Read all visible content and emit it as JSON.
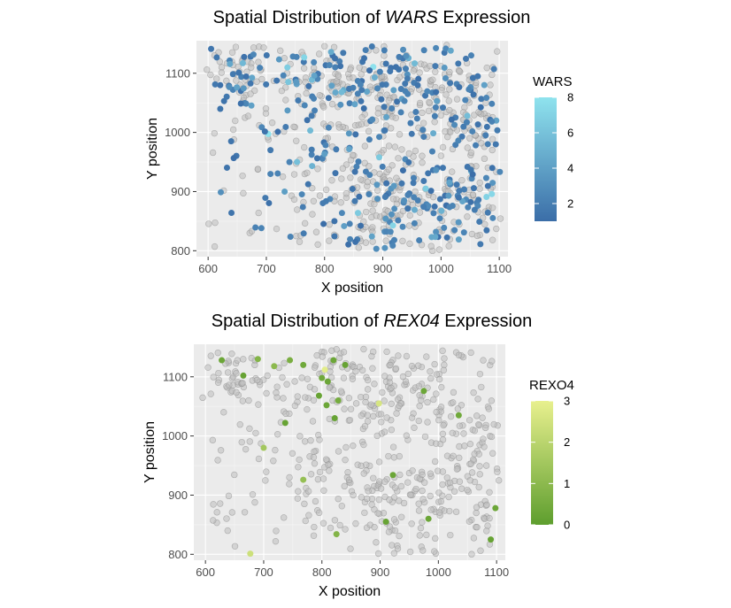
{
  "chart_data": [
    {
      "type": "scatter",
      "title_prefix": "Spatial Distribution of ",
      "title_gene": "WARS",
      "title_suffix": " Expression",
      "xlabel": "X position",
      "ylabel": "Y position",
      "xlim": [
        580,
        1115
      ],
      "ylim": [
        790,
        1155
      ],
      "xticks": [
        600,
        700,
        800,
        900,
        1000,
        1100
      ],
      "yticks": [
        800,
        900,
        1000,
        1100
      ],
      "legend": {
        "title": "WARS",
        "min": 1,
        "max": 8,
        "ticks": [
          2,
          4,
          6,
          8
        ],
        "color_low": "#3b6ea8",
        "color_high": "#8fe3ee",
        "placement": "right"
      },
      "background_color": "#bdbdbd",
      "panel_color": "#ebebeb",
      "grid": true
    },
    {
      "type": "scatter",
      "title_prefix": "Spatial Distribution of ",
      "title_gene": "REX04",
      "title_suffix": " Expression",
      "xlabel": "X position",
      "ylabel": "Y position",
      "xlim": [
        580,
        1115
      ],
      "ylim": [
        790,
        1155
      ],
      "xticks": [
        600,
        700,
        800,
        900,
        1000,
        1100
      ],
      "yticks": [
        800,
        900,
        1000,
        1100
      ],
      "legend": {
        "title": "REXO4",
        "min": 0,
        "max": 3,
        "ticks": [
          0,
          1,
          2,
          3
        ],
        "color_low": "#5e9e2e",
        "color_high": "#e8f08e",
        "placement": "right"
      },
      "background_color": "#bdbdbd",
      "panel_color": "#ebebeb",
      "grid": true,
      "points": [
        {
          "x": 628,
          "y": 1128,
          "v": 0.3
        },
        {
          "x": 665,
          "y": 1102,
          "v": 0.2
        },
        {
          "x": 690,
          "y": 1130,
          "v": 0.8
        },
        {
          "x": 718,
          "y": 1118,
          "v": 1.0
        },
        {
          "x": 745,
          "y": 1128,
          "v": 0.6
        },
        {
          "x": 768,
          "y": 1120,
          "v": 0.4
        },
        {
          "x": 805,
          "y": 1112,
          "v": 2.9
        },
        {
          "x": 800,
          "y": 1098,
          "v": 0.4
        },
        {
          "x": 820,
          "y": 1128,
          "v": 0.3
        },
        {
          "x": 840,
          "y": 1120,
          "v": 0.2
        },
        {
          "x": 810,
          "y": 1092,
          "v": 0.3
        },
        {
          "x": 795,
          "y": 1068,
          "v": 0.2
        },
        {
          "x": 808,
          "y": 1052,
          "v": 0.3
        },
        {
          "x": 828,
          "y": 1060,
          "v": 0.5
        },
        {
          "x": 822,
          "y": 1030,
          "v": 0.2
        },
        {
          "x": 898,
          "y": 1055,
          "v": 2.6
        },
        {
          "x": 975,
          "y": 1076,
          "v": 0.3
        },
        {
          "x": 1035,
          "y": 1035,
          "v": 0.4
        },
        {
          "x": 737,
          "y": 1022,
          "v": 0.2
        },
        {
          "x": 700,
          "y": 980,
          "v": 1.5
        },
        {
          "x": 768,
          "y": 926,
          "v": 1.2
        },
        {
          "x": 922,
          "y": 934,
          "v": 0.3
        },
        {
          "x": 910,
          "y": 855,
          "v": 0.2
        },
        {
          "x": 983,
          "y": 860,
          "v": 0.3
        },
        {
          "x": 1098,
          "y": 878,
          "v": 0.3
        },
        {
          "x": 1090,
          "y": 825,
          "v": 0.2
        },
        {
          "x": 825,
          "y": 834,
          "v": 0.8
        },
        {
          "x": 677,
          "y": 801,
          "v": 2.4
        }
      ]
    }
  ]
}
